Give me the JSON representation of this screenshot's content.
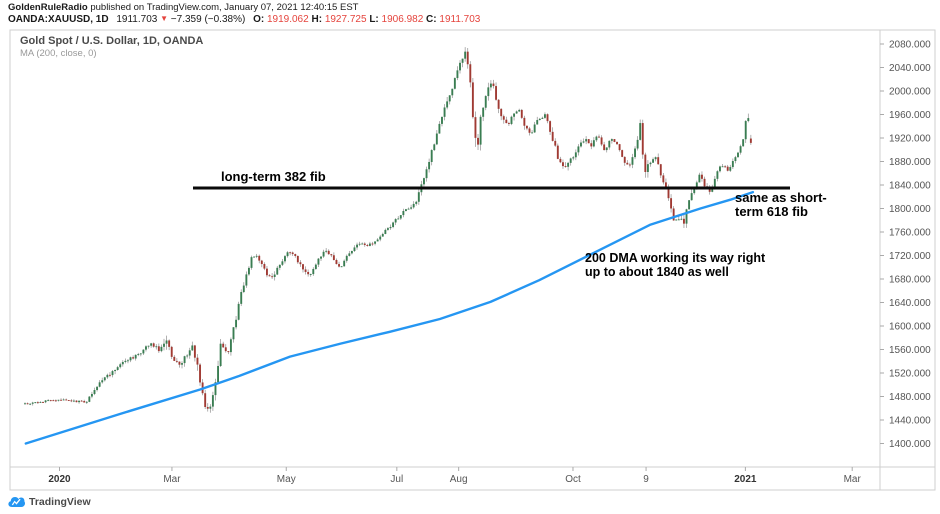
{
  "header": {
    "byline_author": "GoldenRuleRadio",
    "byline_rest": " published on TradingView.com, January 07, 2021 12:40:15 EST",
    "symbol": "OANDA:XAUUSD, 1D",
    "last_price": "1911.703",
    "direction_arrow": "▼",
    "change": "−7.359 (−0.38%)",
    "o_label": "O:",
    "o_value": "1919.062",
    "h_label": "H:",
    "h_value": "1927.725",
    "l_label": "L:",
    "l_value": "1906.982",
    "c_label": "C:",
    "c_value": "1911.703"
  },
  "legend": {
    "title": "Gold Spot / U.S. Dollar, 1D, OANDA",
    "indicator": "MA (200, close, 0)"
  },
  "annotations": {
    "fib_label": "long-term 382 fib",
    "short_fib_line1": "same as short-",
    "short_fib_line2": "term 618 fib",
    "dma_line1": "200 DMA working its way right",
    "dma_line2": "up to about 1840 as well"
  },
  "watermark": {
    "brand": "TradingView"
  },
  "colors": {
    "candle_up": "#3a7d52",
    "candle_down": "#a03a33",
    "wick": "#8f8f8f",
    "ma_line": "#2596f2",
    "fib_line": "#0a0a0a",
    "red_text": "#e5443d",
    "frame": "#cfcfcf",
    "axis_text": "#555555",
    "axis_text_major": "#333333"
  },
  "chart_data": {
    "type": "candlestick",
    "title": "Gold Spot / U.S. Dollar, 1D, OANDA",
    "instrument": "Gold Spot / U.S. Dollar",
    "timeframe": "1D",
    "exchange": "OANDA",
    "indicator": "MA (200, close, 0)",
    "last_bar": {
      "open": 1919.062,
      "high": 1927.725,
      "low": 1906.982,
      "close": 1911.703
    },
    "fib_level": 1835,
    "price_ticks": [
      2080,
      2040,
      2000,
      1960,
      1920,
      1880,
      1840,
      1800,
      1760,
      1720,
      1680,
      1640,
      1600,
      1560,
      1520,
      1480,
      1440,
      1400
    ],
    "price_tick_decimals": 3,
    "time_ticks": [
      {
        "label": "2020",
        "day": 0,
        "major": true
      },
      {
        "label": "Mar",
        "day": 60,
        "major": false
      },
      {
        "label": "May",
        "day": 121,
        "major": false
      },
      {
        "label": "Jul",
        "day": 180,
        "major": false
      },
      {
        "label": "Aug",
        "day": 213,
        "major": false
      },
      {
        "label": "Oct",
        "day": 274,
        "major": false
      },
      {
        "label": "9",
        "day": 313,
        "major": false
      },
      {
        "label": "2021",
        "day": 366,
        "major": true
      },
      {
        "label": "Mar",
        "day": 423,
        "major": false
      }
    ],
    "axis_range": {
      "price_min": 1360,
      "price_max": 2105,
      "day_min": -18.5,
      "day_max": 436
    },
    "close_path_keypoints": [
      [
        -18,
        1468,
        5
      ],
      [
        -8,
        1472,
        4
      ],
      [
        1,
        1474,
        4
      ],
      [
        14,
        1470,
        5
      ],
      [
        22,
        1505,
        7
      ],
      [
        35,
        1540,
        8
      ],
      [
        43,
        1552,
        7
      ],
      [
        48,
        1571,
        8
      ],
      [
        54,
        1558,
        8
      ],
      [
        57,
        1582,
        16
      ],
      [
        60,
        1545,
        10
      ],
      [
        64,
        1532,
        9
      ],
      [
        69,
        1556,
        9
      ],
      [
        71,
        1570,
        10
      ],
      [
        73,
        1540,
        18
      ],
      [
        76,
        1484,
        20
      ],
      [
        79,
        1456,
        16
      ],
      [
        81,
        1472,
        14
      ],
      [
        84,
        1522,
        14
      ],
      [
        86,
        1570,
        12
      ],
      [
        90,
        1555,
        10
      ],
      [
        94,
        1610,
        10
      ],
      [
        97,
        1655,
        9
      ],
      [
        101,
        1700,
        9
      ],
      [
        103,
        1722,
        9
      ],
      [
        106,
        1718,
        8
      ],
      [
        110,
        1692,
        8
      ],
      [
        113,
        1680,
        9
      ],
      [
        118,
        1705,
        8
      ],
      [
        122,
        1728,
        8
      ],
      [
        126,
        1716,
        7
      ],
      [
        129,
        1700,
        8
      ],
      [
        134,
        1688,
        8
      ],
      [
        138,
        1715,
        7
      ],
      [
        142,
        1730,
        7
      ],
      [
        145,
        1718,
        7
      ],
      [
        150,
        1698,
        8
      ],
      [
        154,
        1722,
        6
      ],
      [
        159,
        1740,
        6
      ],
      [
        165,
        1738,
        5
      ],
      [
        170,
        1748,
        6
      ],
      [
        174,
        1762,
        6
      ],
      [
        179,
        1778,
        7
      ],
      [
        184,
        1795,
        7
      ],
      [
        190,
        1810,
        7
      ],
      [
        195,
        1855,
        10
      ],
      [
        199,
        1900,
        10
      ],
      [
        203,
        1945,
        12
      ],
      [
        207,
        1982,
        12
      ],
      [
        211,
        2022,
        12
      ],
      [
        215,
        2055,
        12
      ],
      [
        217,
        2065,
        12
      ],
      [
        219,
        2028,
        16
      ],
      [
        221,
        1928,
        24
      ],
      [
        223,
        1905,
        20
      ],
      [
        225,
        1958,
        16
      ],
      [
        228,
        2002,
        12
      ],
      [
        231,
        2012,
        10
      ],
      [
        234,
        1972,
        12
      ],
      [
        238,
        1940,
        12
      ],
      [
        241,
        1952,
        10
      ],
      [
        245,
        1968,
        9
      ],
      [
        248,
        1940,
        10
      ],
      [
        252,
        1928,
        10
      ],
      [
        255,
        1950,
        9
      ],
      [
        259,
        1960,
        9
      ],
      [
        263,
        1918,
        12
      ],
      [
        266,
        1888,
        12
      ],
      [
        270,
        1870,
        10
      ],
      [
        273,
        1884,
        9
      ],
      [
        277,
        1903,
        8
      ],
      [
        280,
        1918,
        8
      ],
      [
        284,
        1906,
        8
      ],
      [
        287,
        1926,
        8
      ],
      [
        291,
        1900,
        8
      ],
      [
        295,
        1922,
        7
      ],
      [
        298,
        1905,
        7
      ],
      [
        302,
        1878,
        9
      ],
      [
        304,
        1868,
        9
      ],
      [
        308,
        1908,
        10
      ],
      [
        310,
        1948,
        10
      ],
      [
        312,
        1862,
        22
      ],
      [
        315,
        1880,
        10
      ],
      [
        318,
        1886,
        9
      ],
      [
        320,
        1868,
        9
      ],
      [
        323,
        1840,
        10
      ],
      [
        326,
        1808,
        10
      ],
      [
        328,
        1776,
        10
      ],
      [
        331,
        1784,
        12
      ],
      [
        333,
        1774,
        12
      ],
      [
        336,
        1818,
        10
      ],
      [
        339,
        1836,
        9
      ],
      [
        342,
        1862,
        9
      ],
      [
        344,
        1838,
        8
      ],
      [
        347,
        1826,
        8
      ],
      [
        350,
        1852,
        8
      ],
      [
        353,
        1876,
        8
      ],
      [
        357,
        1864,
        7
      ],
      [
        359,
        1878,
        7
      ],
      [
        362,
        1894,
        7
      ],
      [
        365,
        1920,
        8
      ],
      [
        366,
        1946,
        10
      ],
      [
        368,
        1954,
        12
      ],
      [
        369,
        1928,
        10
      ],
      [
        370,
        1912,
        8
      ]
    ],
    "ma_path_keypoints": [
      [
        -18,
        1400
      ],
      [
        32,
        1450
      ],
      [
        75,
        1492
      ],
      [
        96,
        1515
      ],
      [
        123,
        1548
      ],
      [
        150,
        1570
      ],
      [
        176,
        1590
      ],
      [
        203,
        1612
      ],
      [
        230,
        1641
      ],
      [
        256,
        1678
      ],
      [
        288,
        1729
      ],
      [
        315,
        1772
      ],
      [
        342,
        1800
      ],
      [
        358,
        1815
      ],
      [
        370,
        1828
      ]
    ]
  }
}
